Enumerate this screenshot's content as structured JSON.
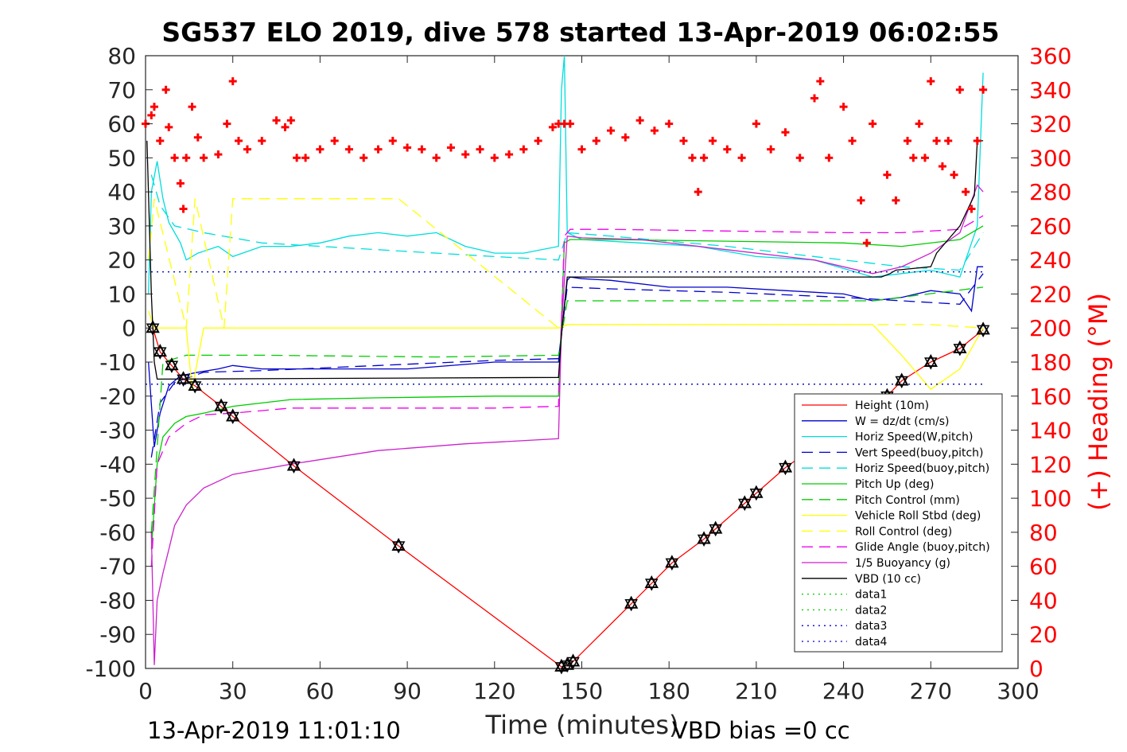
{
  "chart_data": {
    "type": "line",
    "title": "SG537 ELO 2019, dive 578 started 13-Apr-2019 06:02:55",
    "xlabel": "Time (minutes)",
    "ylabel_left": "",
    "ylabel_right": "(+) Heading (°M)",
    "xlim": [
      0,
      300
    ],
    "ylim_left": [
      -100,
      80
    ],
    "ylim_right": [
      0,
      360
    ],
    "x_ticks": [
      0,
      30,
      60,
      90,
      120,
      150,
      180,
      210,
      240,
      270,
      300
    ],
    "x_tick_labels": [
      "0",
      "30",
      "60",
      "90",
      "120",
      "150",
      "180",
      "210",
      "240",
      "270",
      "300"
    ],
    "y_left_ticks": [
      80,
      70,
      60,
      50,
      40,
      30,
      20,
      10,
      0,
      -10,
      -20,
      -30,
      -40,
      -50,
      -60,
      -70,
      -80,
      -90,
      -100
    ],
    "y_left_tick_labels": [
      "80",
      "70",
      "60",
      "50",
      "40",
      "30",
      "20",
      "10",
      "0",
      "-10",
      "-20",
      "-30",
      "-40",
      "-50",
      "-60",
      "-70",
      "-80",
      "-90",
      "-100"
    ],
    "y_right_ticks": [
      360,
      340,
      320,
      300,
      280,
      260,
      240,
      220,
      200,
      180,
      160,
      140,
      120,
      100,
      80,
      60,
      40,
      20,
      0
    ],
    "y_right_tick_labels": [
      "360",
      "340",
      "320",
      "300",
      "280",
      "260",
      "240",
      "220",
      "200",
      "180",
      "160",
      "140",
      "120",
      "100",
      "80",
      "60",
      "40",
      "20",
      "0"
    ],
    "grid": false,
    "legend_placement": "bottom-right",
    "footer_left": "13-Apr-2019 11:01:10",
    "footer_right": "VBD bias =0 cc",
    "series": [
      {
        "name": "Height (10m)",
        "color": "#ff0000",
        "style": "solid",
        "axis": "left",
        "x": [
          2.5,
          5,
          9,
          13,
          17,
          26,
          30,
          51,
          87,
          143,
          145,
          147,
          167,
          174,
          181,
          192,
          196,
          206,
          210,
          220,
          255,
          260,
          270,
          280,
          288
        ],
        "y": [
          0,
          -7,
          -11,
          -15,
          -17,
          -23,
          -26,
          -40.5,
          -64,
          -99.5,
          -99,
          -98,
          -81,
          -75,
          -69,
          -62,
          -59,
          -51.5,
          -48.5,
          -41,
          -20,
          -15.5,
          -10,
          -6,
          -0.5
        ]
      },
      {
        "name": "W = dz/dt (cm/s)",
        "color": "#0000cc",
        "style": "solid",
        "axis": "left",
        "x": [
          1,
          3,
          5,
          8,
          12,
          18,
          25,
          30,
          40,
          50,
          60,
          90,
          120,
          142,
          143,
          145,
          146,
          150,
          160,
          180,
          200,
          220,
          240,
          250,
          260,
          270,
          280,
          284,
          286,
          288
        ],
        "y": [
          -10,
          -35,
          -25,
          -17,
          -14,
          -13,
          -12,
          -11,
          -12,
          -12,
          -12,
          -12,
          -10,
          -10,
          -2,
          14,
          15,
          14.5,
          14,
          12,
          12,
          11,
          10,
          8,
          9,
          11,
          10,
          5,
          18,
          18
        ]
      },
      {
        "name": "Horiz Speed(W,pitch)",
        "color": "#00dddd",
        "style": "solid",
        "axis": "left",
        "x": [
          1,
          2,
          4,
          6,
          8,
          12,
          14,
          18,
          25,
          30,
          40,
          50,
          60,
          70,
          80,
          90,
          100,
          110,
          120,
          130,
          142,
          143,
          144,
          145,
          150,
          170,
          190,
          210,
          230,
          250,
          260,
          270,
          280,
          286,
          288
        ],
        "y": [
          10,
          40,
          49,
          38,
          31,
          25,
          20,
          22,
          24,
          21,
          24,
          24,
          25,
          27,
          28,
          27,
          28,
          24,
          22,
          22,
          24,
          70,
          80,
          28,
          26,
          25,
          24,
          21,
          20,
          15,
          16,
          17,
          15,
          30,
          75
        ]
      },
      {
        "name": "Vert Speed(buoy,pitch)",
        "color": "#0000cc",
        "style": "dashed",
        "axis": "left",
        "x": [
          2,
          5,
          10,
          20,
          40,
          80,
          120,
          142,
          145,
          160,
          200,
          240,
          260,
          280,
          288
        ],
        "y": [
          -38,
          -22,
          -16,
          -13,
          -12.5,
          -11,
          -9.5,
          -9,
          12,
          11.5,
          10.5,
          9,
          8,
          7,
          16
        ]
      },
      {
        "name": "Horiz Speed(buoy,pitch)",
        "color": "#00dddd",
        "style": "dashed",
        "axis": "left",
        "x": [
          2,
          5,
          10,
          20,
          40,
          80,
          120,
          142,
          145,
          160,
          200,
          240,
          260,
          280,
          288
        ],
        "y": [
          45,
          36,
          30,
          28,
          25,
          23,
          21,
          20,
          28,
          27,
          24,
          20,
          18,
          17,
          28
        ]
      },
      {
        "name": "Pitch Up (deg)",
        "color": "#00cc00",
        "style": "solid",
        "axis": "left",
        "x": [
          2,
          4,
          6,
          10,
          14,
          20,
          30,
          50,
          80,
          120,
          142,
          144,
          146,
          160,
          200,
          240,
          260,
          280,
          288
        ],
        "y": [
          -65,
          -40,
          -32,
          -28,
          -26,
          -25,
          -23,
          -21,
          -20.5,
          -20,
          -20,
          25,
          26,
          26,
          25.5,
          25,
          24,
          26,
          30
        ]
      },
      {
        "name": "Pitch Control (mm)",
        "color": "#00cc00",
        "style": "dashed",
        "axis": "left",
        "x": [
          2,
          6,
          14,
          40,
          100,
          142,
          145,
          200,
          250,
          288
        ],
        "y": [
          -60,
          -10,
          -8,
          -8,
          -8.5,
          -8,
          8,
          8,
          8,
          12
        ]
      },
      {
        "name": "Vehicle Roll Stbd (deg)",
        "color": "#ffff00",
        "style": "solid",
        "axis": "left",
        "x": [
          1,
          3,
          8,
          12,
          14,
          16,
          20,
          28,
          30,
          50,
          87,
          120,
          142,
          145,
          150,
          160,
          190,
          220,
          240,
          250,
          260,
          270,
          280,
          288
        ],
        "y": [
          5,
          0,
          0,
          0,
          0,
          -18,
          0,
          0,
          0,
          0,
          0,
          0,
          0,
          1,
          1,
          1,
          1,
          1,
          1,
          1,
          -8,
          -18,
          -12,
          0
        ]
      },
      {
        "name": "Roll Control (deg)",
        "color": "#ffff00",
        "style": "dashed",
        "axis": "left",
        "x": [
          1,
          3,
          14,
          17,
          27,
          30,
          50,
          87,
          142,
          145,
          160,
          180,
          190,
          220,
          250,
          270,
          288
        ],
        "y": [
          20,
          38,
          0,
          38,
          0,
          38,
          38,
          38,
          0,
          1,
          1,
          1,
          1,
          1,
          1,
          1,
          0
        ]
      },
      {
        "name": "Glide Angle (buoy,pitch)",
        "color": "#ee00ee",
        "style": "dashed",
        "axis": "left",
        "x": [
          2,
          4,
          8,
          14,
          20,
          30,
          50,
          80,
          120,
          142,
          144,
          146,
          160,
          200,
          240,
          260,
          280,
          288
        ],
        "y": [
          -70,
          -40,
          -32,
          -28,
          -25.5,
          -25,
          -23.5,
          -23.5,
          -23.5,
          -23,
          27,
          29,
          29,
          28.5,
          28,
          28,
          29,
          33
        ]
      },
      {
        "name": "1/5 Buoyancy (g)",
        "color": "#cc22cc",
        "style": "solid",
        "axis": "left",
        "x": [
          2,
          3,
          4,
          6,
          8,
          10,
          14,
          20,
          30,
          50,
          80,
          110,
          142,
          143,
          145,
          150,
          170,
          200,
          230,
          250,
          260,
          270,
          280,
          286,
          288
        ],
        "y": [
          -60,
          -99,
          -80,
          -72,
          -65,
          -58,
          -52,
          -47,
          -43,
          -40,
          -36,
          -34,
          -32.5,
          0,
          27,
          26.5,
          26,
          23,
          20,
          16,
          18,
          22,
          28,
          42,
          40
        ]
      },
      {
        "name": "VBD (10 cc)",
        "color": "#000000",
        "style": "solid",
        "axis": "left",
        "x": [
          0.5,
          2,
          3,
          4,
          6,
          142,
          143,
          145,
          150,
          200,
          253,
          256,
          258,
          270,
          272,
          276,
          280,
          285,
          286,
          288
        ],
        "y": [
          55,
          10,
          -10,
          -15,
          -15,
          -14.5,
          -2,
          15,
          15,
          15,
          15,
          16,
          17,
          18,
          22,
          26,
          30,
          39,
          55,
          55
        ]
      },
      {
        "name": "data1",
        "color": "#00cc00",
        "style": "dotted",
        "axis": "left",
        "x": [
          0,
          288
        ],
        "y": [
          -16.5,
          -16.5
        ]
      },
      {
        "name": "data2",
        "color": "#00cc00",
        "style": "dotted",
        "axis": "left",
        "x": [
          0,
          288
        ],
        "y": [
          16.5,
          16.5
        ]
      },
      {
        "name": "data3",
        "color": "#0000cc",
        "style": "dotted",
        "axis": "left",
        "x": [
          0,
          288
        ],
        "y": [
          -16.5,
          -16.5
        ]
      },
      {
        "name": "data4",
        "color": "#0000cc",
        "style": "dotted",
        "axis": "left",
        "x": [
          0,
          288
        ],
        "y": [
          16.5,
          16.5
        ]
      },
      {
        "name": "",
        "color": "#ff0000",
        "style": "plus",
        "axis": "right",
        "x": [
          0,
          2,
          3,
          5,
          7,
          8,
          10,
          12,
          13,
          14,
          16,
          18,
          20,
          25,
          28,
          30,
          32,
          35,
          40,
          45,
          48,
          50,
          52,
          55,
          60,
          65,
          70,
          75,
          80,
          85,
          90,
          95,
          100,
          105,
          110,
          115,
          120,
          125,
          130,
          135,
          140,
          142,
          144,
          146,
          150,
          155,
          160,
          165,
          170,
          175,
          180,
          185,
          188,
          190,
          192,
          195,
          200,
          205,
          210,
          215,
          220,
          225,
          230,
          232,
          235,
          240,
          243,
          246,
          248,
          250,
          255,
          258,
          262,
          264,
          266,
          268,
          270,
          272,
          274,
          276,
          278,
          280,
          282,
          284,
          286,
          288
        ],
        "y": [
          320,
          325,
          330,
          310,
          340,
          318,
          300,
          285,
          270,
          300,
          330,
          312,
          300,
          302,
          320,
          345,
          310,
          305,
          310,
          322,
          318,
          322,
          300,
          300,
          305,
          310,
          305,
          300,
          305,
          310,
          306,
          305,
          300,
          306,
          302,
          305,
          300,
          302,
          305,
          310,
          318,
          320,
          320,
          320,
          305,
          310,
          316,
          312,
          322,
          316,
          320,
          310,
          300,
          280,
          300,
          310,
          305,
          300,
          320,
          305,
          315,
          300,
          335,
          345,
          300,
          330,
          310,
          275,
          250,
          320,
          290,
          275,
          310,
          300,
          320,
          300,
          345,
          310,
          295,
          310,
          290,
          340,
          280,
          270,
          310,
          340
        ]
      }
    ]
  }
}
